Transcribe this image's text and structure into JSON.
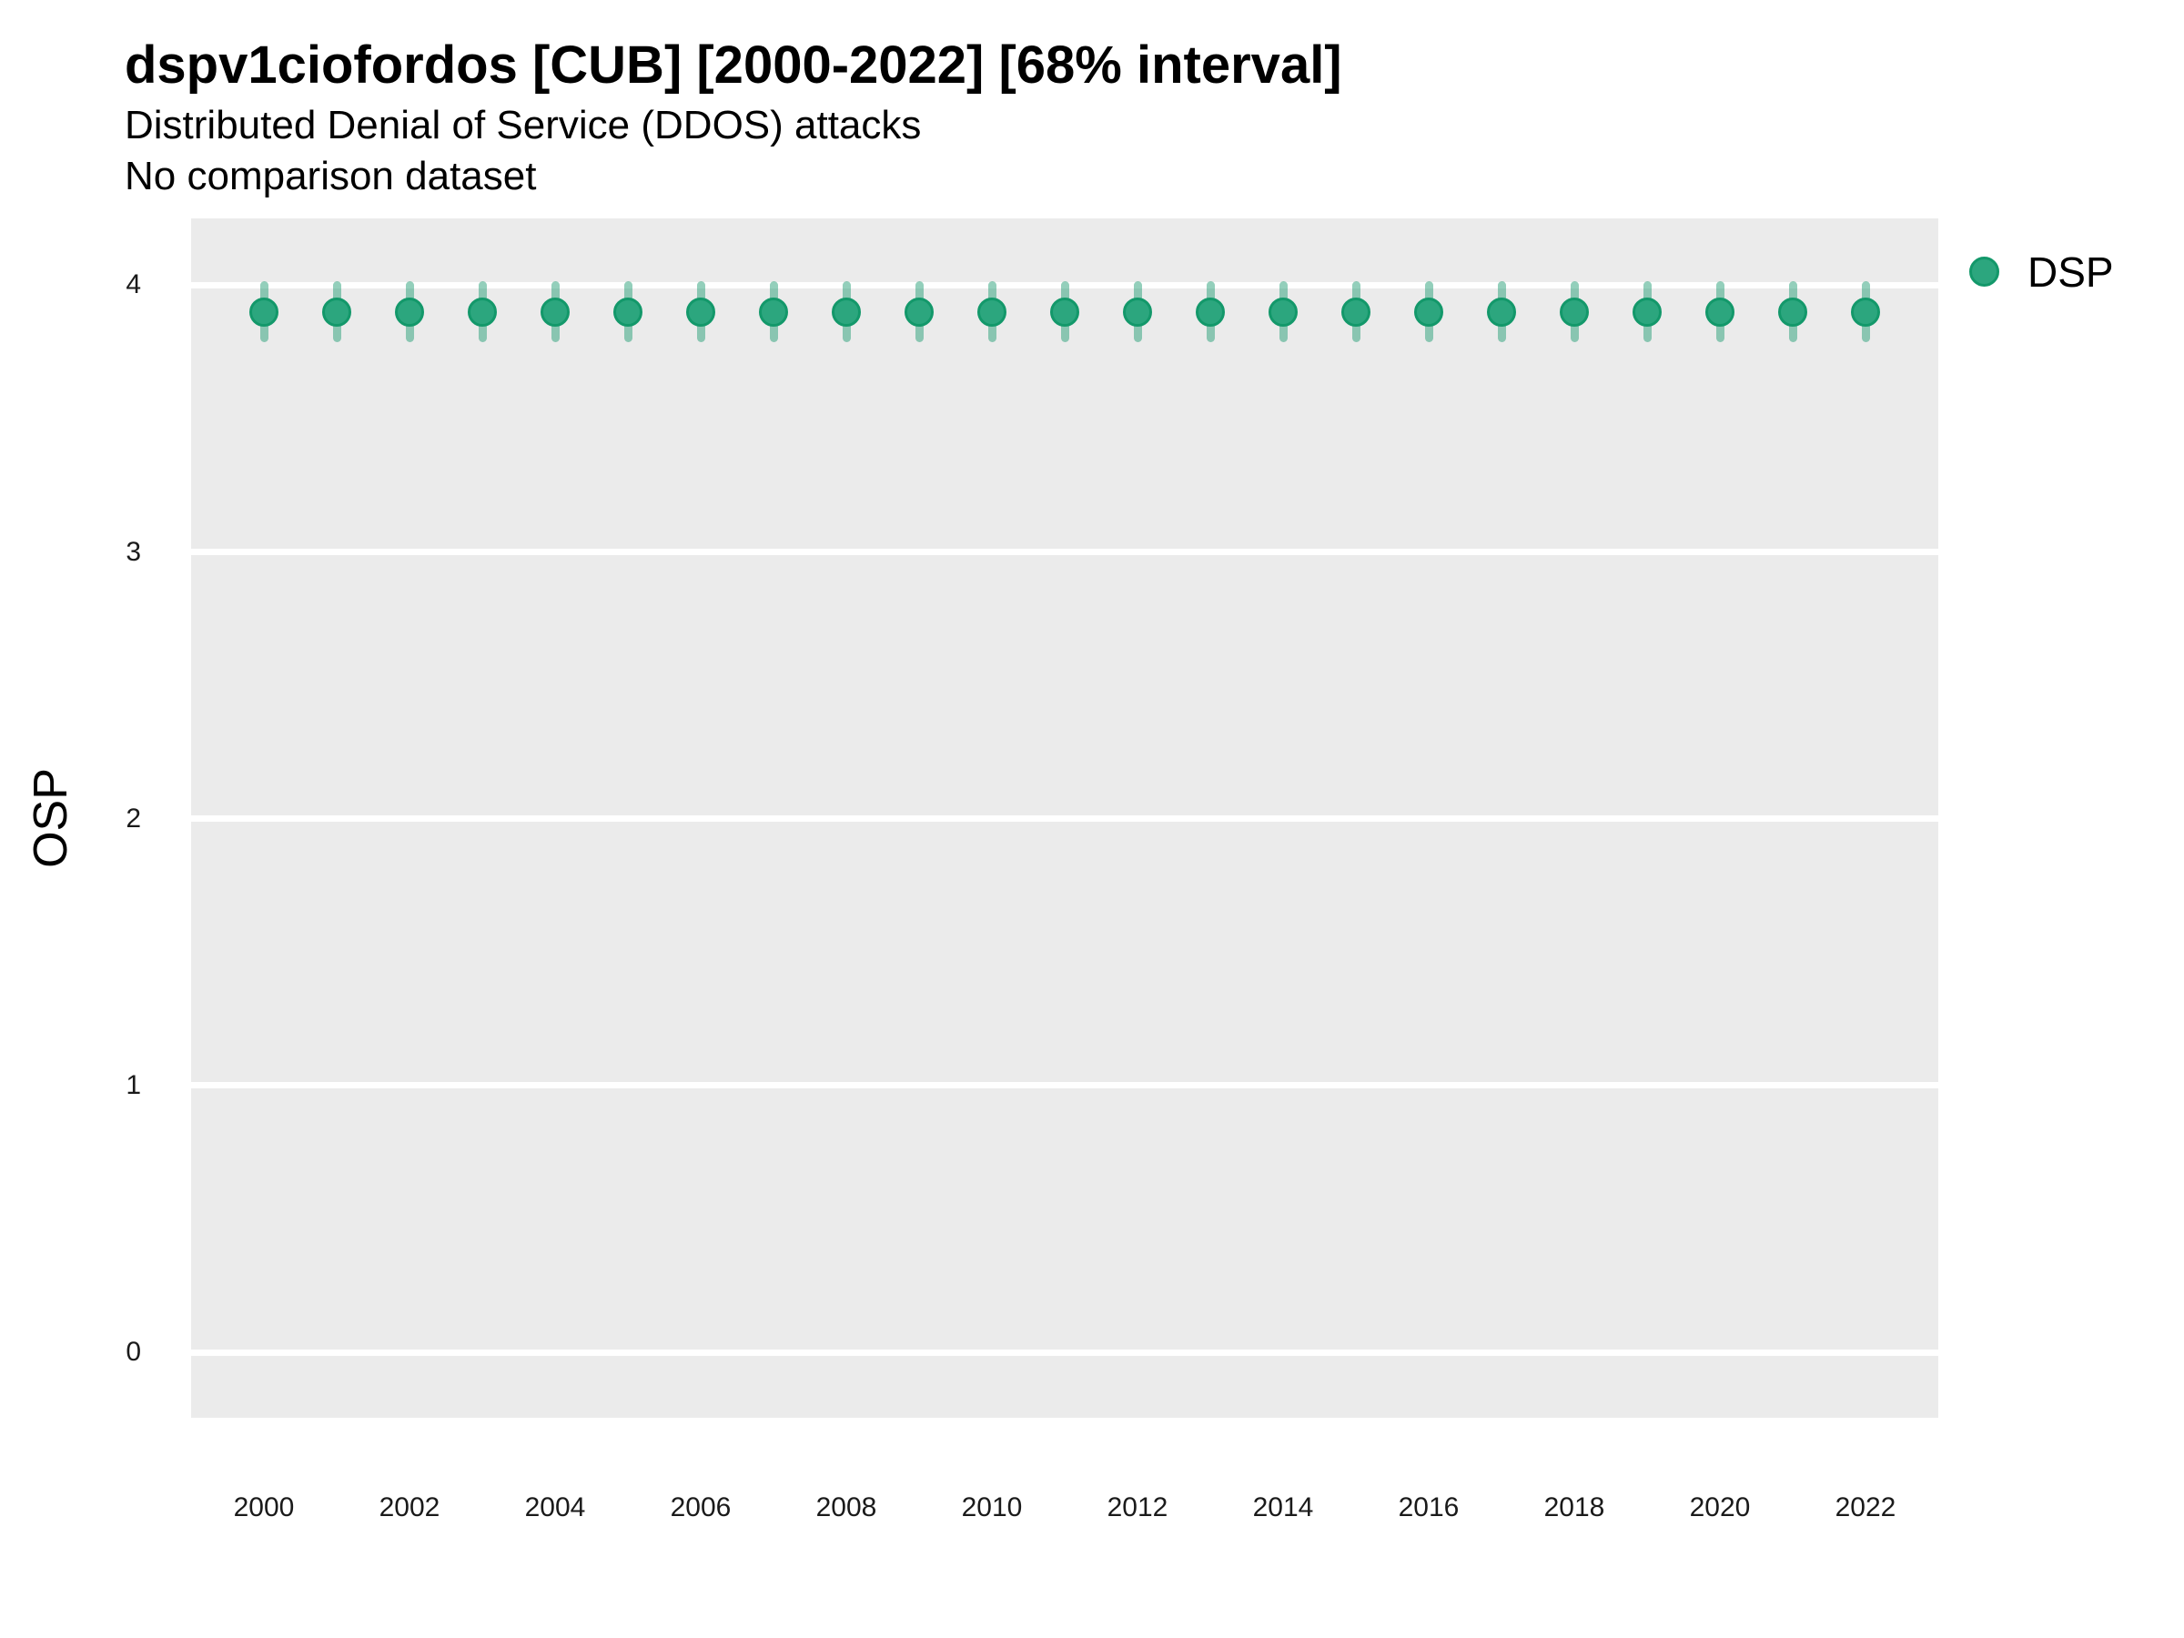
{
  "header": {
    "title": "dspv1ciofordos [CUB] [2000-2022] [68% interval]",
    "subtitle": "Distributed Denial of Service (DDOS) attacks",
    "note": "No comparison dataset"
  },
  "legend": {
    "position": "right",
    "items": [
      {
        "label": "DSP",
        "marker": "circle",
        "color": "#2ca67e"
      }
    ]
  },
  "colors": {
    "panel_background": "#ebebeb",
    "gridline": "#ffffff",
    "point_fill": "#2ca67e",
    "point_stroke": "#13986a",
    "interval_bar": "rgba(39,160,120,0.5)",
    "text": "#000000"
  },
  "chart_data": {
    "type": "scatter",
    "title": "dspv1ciofordos [CUB] [2000-2022] [68% interval]",
    "subtitle": "Distributed Denial of Service (DDOS) attacks",
    "note": "No comparison dataset",
    "xlabel": "",
    "ylabel": "OSP",
    "interval": "68%",
    "grid": "horizontal-major-only",
    "legend_position": "right",
    "x_domain": [
      1999,
      2023
    ],
    "y_domain": [
      -0.245,
      4.25
    ],
    "x_ticks": [
      2000,
      2002,
      2004,
      2006,
      2008,
      2010,
      2012,
      2014,
      2016,
      2018,
      2020,
      2022
    ],
    "y_ticks": [
      0,
      1,
      2,
      3,
      4
    ],
    "series": [
      {
        "name": "DSP",
        "x": [
          2000,
          2001,
          2002,
          2003,
          2004,
          2005,
          2006,
          2007,
          2008,
          2009,
          2010,
          2011,
          2012,
          2013,
          2014,
          2015,
          2016,
          2017,
          2018,
          2019,
          2020,
          2021,
          2022
        ],
        "y": [
          3.9,
          3.9,
          3.9,
          3.9,
          3.9,
          3.9,
          3.9,
          3.9,
          3.9,
          3.9,
          3.9,
          3.9,
          3.9,
          3.9,
          3.9,
          3.9,
          3.9,
          3.9,
          3.9,
          3.9,
          3.9,
          3.9,
          3.9
        ],
        "interval_low": [
          3.8,
          3.8,
          3.8,
          3.8,
          3.8,
          3.8,
          3.8,
          3.8,
          3.8,
          3.8,
          3.8,
          3.8,
          3.8,
          3.8,
          3.8,
          3.8,
          3.8,
          3.8,
          3.8,
          3.8,
          3.8,
          3.8,
          3.8
        ],
        "interval_high": [
          4.0,
          4.0,
          4.0,
          4.0,
          4.0,
          4.0,
          4.0,
          4.0,
          4.0,
          4.0,
          4.0,
          4.0,
          4.0,
          4.0,
          4.0,
          4.0,
          4.0,
          4.0,
          4.0,
          4.0,
          4.0,
          4.0,
          4.0
        ]
      }
    ]
  }
}
